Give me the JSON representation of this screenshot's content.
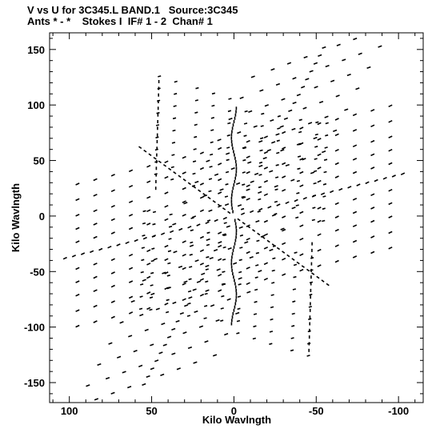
{
  "chart_data": {
    "type": "scatter",
    "title": "V vs U for 3C345.L BAND.1   Source:3C345",
    "subtitle": "Ants * - *    Stokes I  IF# 1 - 2  Chan# 1",
    "xlabel": "Kilo Wavlngth",
    "ylabel": "Kilo Wavlngth",
    "xlim": [
      112,
      -115
    ],
    "ylim": [
      -168,
      165
    ],
    "x_ticks": [
      100,
      50,
      0,
      -50,
      -100
    ],
    "x_tick_labels": [
      "100",
      "50",
      "0",
      "-50",
      "-100"
    ],
    "y_ticks": [
      -150,
      -100,
      -50,
      0,
      50,
      100,
      150
    ],
    "y_tick_labels": [
      "-150",
      "-100",
      "-50",
      "0",
      "50",
      "100",
      "150"
    ],
    "grid": false,
    "point_color": "#000000",
    "sample_points": {
      "arm_ne_outer": [
        [
          -57,
          158
        ],
        [
          -48,
          145
        ],
        [
          -40,
          132
        ],
        [
          -30,
          118
        ],
        [
          -20,
          104
        ],
        [
          -10,
          92
        ]
      ],
      "arm_sw_outer": [
        [
          57,
          -158
        ],
        [
          48,
          -145
        ],
        [
          40,
          -132
        ],
        [
          30,
          -118
        ],
        [
          20,
          -104
        ],
        [
          10,
          -92
        ]
      ],
      "arm_e_outer": [
        [
          -108,
          40
        ],
        [
          -95,
          35
        ],
        [
          -82,
          30
        ],
        [
          -70,
          25
        ],
        [
          -57,
          20
        ],
        [
          -45,
          15
        ]
      ],
      "arm_w_outer": [
        [
          108,
          -40
        ],
        [
          95,
          -35
        ],
        [
          82,
          -30
        ],
        [
          70,
          -25
        ],
        [
          57,
          -20
        ],
        [
          45,
          -15
        ]
      ],
      "arm_n_outer": [
        [
          5,
          100
        ],
        [
          -1,
          95
        ],
        [
          3,
          88
        ],
        [
          -2,
          80
        ],
        [
          2,
          72
        ]
      ],
      "arm_s_outer": [
        [
          -5,
          -100
        ],
        [
          1,
          -95
        ],
        [
          -3,
          -88
        ],
        [
          2,
          -80
        ],
        [
          -2,
          -72
        ]
      ]
    }
  }
}
